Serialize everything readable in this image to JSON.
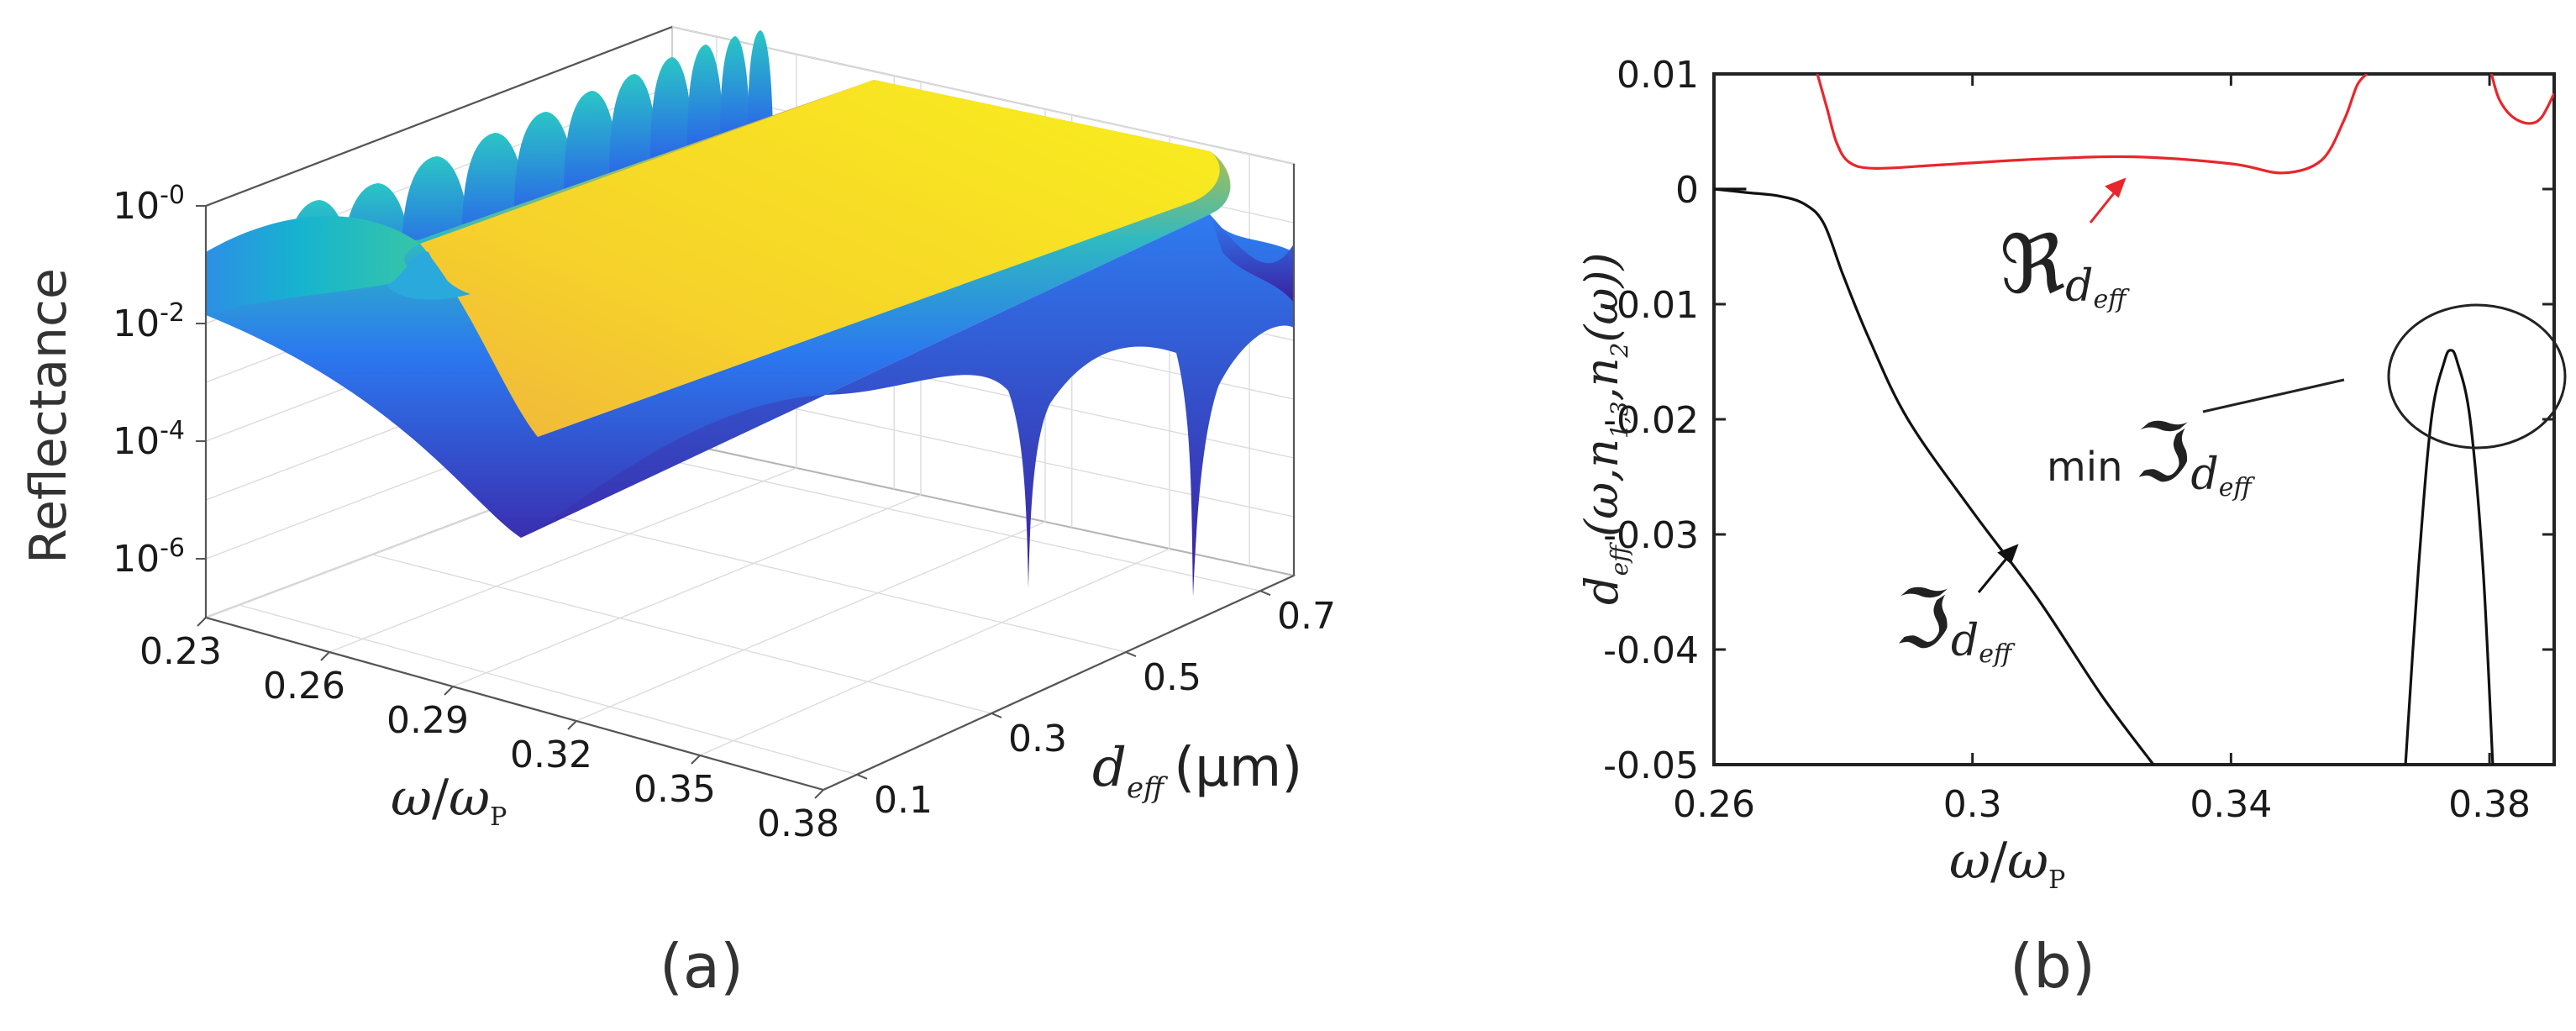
{
  "chart_data": [
    {
      "panel": "a",
      "type": "surface",
      "panel_label": "(a)",
      "zlabel": "Reflectance",
      "zscale": "log",
      "ztick_labels": [
        {
          "base": "10",
          "exp": "-0",
          "value": 1
        },
        {
          "base": "10",
          "exp": "-2",
          "value": 0.01
        },
        {
          "base": "10",
          "exp": "-4",
          "value": 0.0001
        },
        {
          "base": "10",
          "exp": "-6",
          "value": 1e-06
        }
      ],
      "xlabel": {
        "num": "ω",
        "den": "ω",
        "den_sub": "P"
      },
      "xticks": [
        "0.23",
        "0.26",
        "0.29",
        "0.32",
        "0.35",
        "0.38"
      ],
      "x_range": [
        0.23,
        0.38
      ],
      "ylabel": {
        "main": "d",
        "sub": "eff",
        "unit": "(μm)"
      },
      "yticks": [
        "0.1",
        "0.3",
        "0.5",
        "0.7"
      ],
      "y_range": [
        0.05,
        0.75
      ],
      "colormap": [
        "#3e26a8",
        "#2e74f0",
        "#12b1d8",
        "#45c79e",
        "#b8bd51",
        "#f6ba38",
        "#f9e51f"
      ]
    },
    {
      "panel": "b",
      "type": "line",
      "panel_label": "(b)",
      "xlabel": {
        "num": "ω",
        "den": "ω",
        "den_sub": "P"
      },
      "ylabel": {
        "main": "d",
        "sub": "eff",
        "args": "(ω,n",
        "sub2": "1,3",
        "comma": ",n",
        "sub3": "2",
        "end": "(ω))"
      },
      "xlim": [
        0.26,
        0.39
      ],
      "ylim": [
        -0.05,
        0.01
      ],
      "xticks": [
        0.26,
        0.3,
        0.34,
        0.38
      ],
      "xtick_labels": [
        "0.26",
        "0.3",
        "0.34",
        "0.38"
      ],
      "yticks": [
        0.01,
        0,
        -0.01,
        -0.02,
        -0.03,
        -0.04,
        -0.05
      ],
      "ytick_labels": [
        "0.01",
        "0",
        "-0.01",
        "-0.02",
        "-0.03",
        "-0.04",
        "-0.05"
      ],
      "series": [
        {
          "name": "Re d_eff (left)",
          "color": "#e8262c",
          "x": [
            0.276,
            0.2775,
            0.279,
            0.281,
            0.285,
            0.295,
            0.31,
            0.325,
            0.34,
            0.348,
            0.354,
            0.3575,
            0.3595,
            0.361
          ],
          "y": [
            0.01,
            0.007,
            0.004,
            0.0023,
            0.0018,
            0.0021,
            0.0026,
            0.0028,
            0.0022,
            0.0014,
            0.0025,
            0.006,
            0.009,
            0.01
          ]
        },
        {
          "name": "Re d_eff (right)",
          "color": "#e8262c",
          "x": [
            0.3803,
            0.3815,
            0.3835,
            0.386,
            0.388,
            0.39
          ],
          "y": [
            0.01,
            0.0078,
            0.0063,
            0.0057,
            0.0062,
            0.0083
          ]
        },
        {
          "name": "Im d_eff",
          "color": "#111111",
          "x": [
            0.26,
            0.265,
            0.27,
            0.274,
            0.277,
            0.28,
            0.284,
            0.29,
            0.3,
            0.31,
            0.32,
            0.328
          ],
          "y": [
            0.0,
            -0.0003,
            -0.0006,
            -0.0013,
            -0.003,
            -0.0075,
            -0.013,
            -0.02,
            -0.028,
            -0.0355,
            -0.044,
            -0.05
          ]
        },
        {
          "name": "Im d_eff (branch)",
          "color": "#111111",
          "x": [
            0.26,
            0.265
          ],
          "y": [
            0.0,
            0.0
          ]
        },
        {
          "name": "min Im d_eff",
          "color": "#111111",
          "x": [
            0.367,
            0.369,
            0.371,
            0.373,
            0.374,
            0.375,
            0.377,
            0.379,
            0.3805
          ],
          "y": [
            -0.05,
            -0.033,
            -0.02,
            -0.015,
            -0.014,
            -0.015,
            -0.02,
            -0.033,
            -0.05
          ]
        }
      ],
      "annotations": [
        {
          "id": "re",
          "symbol": "ℜ",
          "sub": "d",
          "subsub": "eff",
          "color": "#e8262c"
        },
        {
          "id": "im",
          "symbol": "ℑ",
          "sub": "d",
          "subsub": "eff",
          "color": "#111111"
        },
        {
          "id": "min",
          "prefix": "min",
          "symbol": "ℑ",
          "sub": "d",
          "subsub": "eff",
          "color": "#111111"
        }
      ]
    }
  ]
}
